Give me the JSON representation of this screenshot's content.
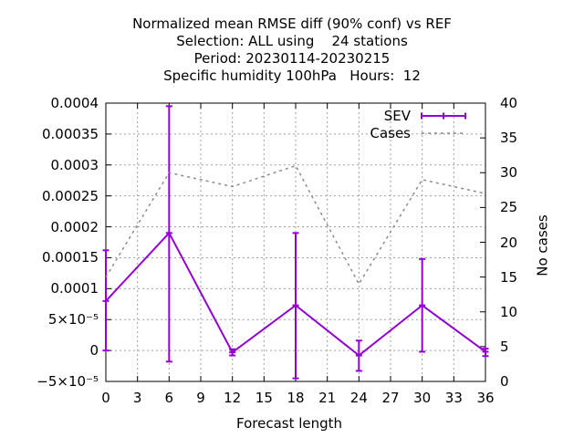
{
  "chart_data": {
    "type": "line",
    "title_lines": [
      "Normalized mean RMSE diff (90% conf) vs REF",
      "Selection: ALL using    24 stations",
      "Period: 20230114-20230215",
      "Specific humidity 100hPa   Hours:  12"
    ],
    "xlabel": "Forecast length",
    "y2label": "No cases",
    "xlim": [
      0,
      36
    ],
    "ylim": [
      -5e-05,
      0.0004
    ],
    "y2lim": [
      0,
      40
    ],
    "x_ticks": [
      "0",
      "3",
      "6",
      "9",
      "12",
      "15",
      "18",
      "21",
      "24",
      "27",
      "30",
      "33",
      "36"
    ],
    "y_ticks": [
      {
        "value": 0.0004,
        "label": "0.0004"
      },
      {
        "value": 0.00035,
        "label": "0.00035"
      },
      {
        "value": 0.0003,
        "label": "0.0003"
      },
      {
        "value": 0.00025,
        "label": "0.00025"
      },
      {
        "value": 0.0002,
        "label": "0.0002"
      },
      {
        "value": 0.00015,
        "label": "0.00015"
      },
      {
        "value": 0.0001,
        "label": "0.0001"
      },
      {
        "value": 5e-05,
        "label": "5×10⁻⁵"
      },
      {
        "value": 0,
        "label": "0"
      },
      {
        "value": -5e-05,
        "label": "−5×10⁻⁵"
      }
    ],
    "y2_ticks": [
      "0",
      "5",
      "10",
      "15",
      "20",
      "25",
      "30",
      "35",
      "40"
    ],
    "grid": true,
    "legend_position": "top-right",
    "series": [
      {
        "name": "SEV",
        "color": "#9400d3",
        "axis": "y1",
        "x": [
          0,
          6,
          12,
          18,
          24,
          30,
          36
        ],
        "y": [
          8e-05,
          0.00019,
          -3e-06,
          7.3e-05,
          -8e-06,
          7.3e-05,
          -2e-06
        ],
        "err_low": [
          0.0,
          -1.8e-05,
          -8e-06,
          -4.5e-05,
          -3.3e-05,
          -2e-06,
          -9e-06
        ],
        "err_high": [
          0.000162,
          0.000395,
          2e-06,
          0.00019,
          1.6e-05,
          0.000148,
          3e-06
        ]
      },
      {
        "name": "Cases",
        "color": "#8c8c8c",
        "axis": "y2",
        "style": "dashed",
        "x": [
          0,
          6,
          12,
          18,
          24,
          30,
          36
        ],
        "y": [
          15,
          30,
          28,
          31,
          14,
          29,
          27
        ]
      }
    ]
  }
}
